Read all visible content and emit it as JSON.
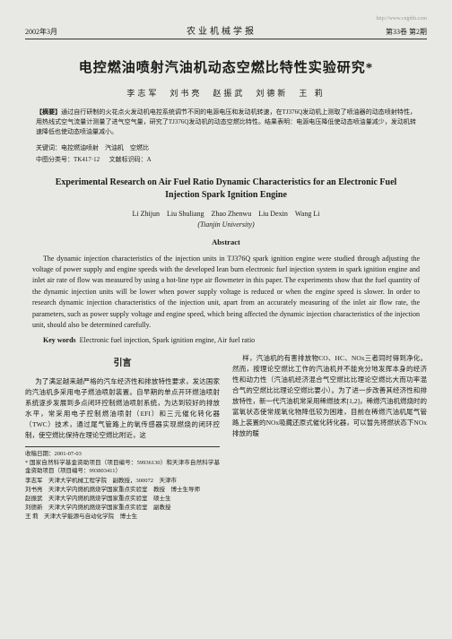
{
  "header": {
    "date": "2002年3月",
    "journal": "农业机械学报",
    "issue": "第33卷 第2期",
    "url": "http://www.cnjpbh.com"
  },
  "cn": {
    "title": "电控燃油喷射汽油机动态空燃比特性实验研究*",
    "authors": "李志军　刘书亮　赵振武　刘德新　王 莉",
    "abstract_label": "【摘要】",
    "abstract": "通过自行研制的火花点火发动机电控系统调节不同的电源电压和发动机转速，在TJ376Q发动机上测取了喷油器的动态喷射特性，用热线式空气流量计测量了进气空气量，研究了TJ376Q发动机的动态空燃比特性。结果表明：电源电压降低使动态喷油量减少，发动机转速降低也使动态喷油量减小。",
    "keywords_label": "关键词：",
    "keywords": "电控燃油喷射　汽油机　空燃比",
    "class_label": "中图分类号：",
    "class": "TK417·12",
    "doc_label": "文献标识码：",
    "doc": "A"
  },
  "en": {
    "title": "Experimental Research on Air Fuel Ratio Dynamic Characteristics for an Electronic Fuel Injection Spark Ignition Engine",
    "authors": "Li Zhijun　Liu Shuliang　Zhao Zhenwu　Liu Dexin　Wang Li",
    "affil": "(Tianjin University)",
    "abstract_head": "Abstract",
    "abstract": "The dynamic injection characteristics of the injection units in TJ376Q spark ignition engine were studied through adjusting the voltage of power supply and engine speeds with the developed lean burn electronic fuel injection system in spark ignition engine and inlet air rate of flow was measured by using a hot-line type air flowmeter in this paper. The experiments show that the fuel quantity of the dynamic injection units will be lower when power supply voltage is reduced or when the engine speed is slower. In order to research dynamic injection characteristics of the injection unit, apart from an accurately measuring of the inlet air flow rate, the parameters, such as power supply voltage and engine speed, which being affected the dynamic injection characteristics of the injection unit, should also be determined carefully.",
    "keywords_label": "Key words",
    "keywords": "Electronic fuel injection, Spark ignition engine, Air fuel ratio"
  },
  "body": {
    "section_head": "引言",
    "left_para": "为了满足越来越严格的汽车经济性和排放特性要求，发达国家的汽油机多采用电子燃油喷射装置。自早期的单点开环燃油喷射系统逐步发展到多点闭环控制燃油喷射系统，为达到较好的排放水平，常采用电子控制燃油喷射（EFI）和三元催化转化器（TWC）技术，通过尾气管路上的氧传感器实现燃烧的闭环控制，使空燃比保持在理论空燃比附近，这",
    "right_para": "样，汽油机的有害排放物CO、HC、NOx三者同时得到净化。然而，按理论空燃比工作的汽油机并不能充分地发挥本身的经济性和动力性（汽油机经济混合气空燃比比理论空燃比大而功率混合气的空燃比比理论空燃比要小）。为了进一步改善其经济性和排放特性，新一代汽油机常采用稀燃技术[1,2]，稀燃汽油机燃烧时的富氧状态使常规氧化物降低较为困难，目前在稀燃汽油机尾气管路上装置的NOx吸藏还原式催化转化器，可以暂先将燃状态下NOx排放的暖"
  },
  "footnotes": {
    "received": "收稿日期：2001-07-03",
    "fund": "* 国家自然科学基金资助项目（项目编号：59936130）和天津市自然科学基金资助项目（项目编号：993803411）",
    "a1": "李志军　天津大学机械工程学院　副教授，300072　天津市",
    "a2": "刘书亮　天津大学内燃机燃烧学国家重点实验室　教授　博士生导师",
    "a3": "赵振武　天津大学内燃机燃烧学国家重点实验室　硕士生",
    "a4": "刘德新　天津大学内燃机燃烧学国家重点实验室　副教授",
    "a5": "王 莉　天津大学能源与自动化学院　博士生"
  }
}
